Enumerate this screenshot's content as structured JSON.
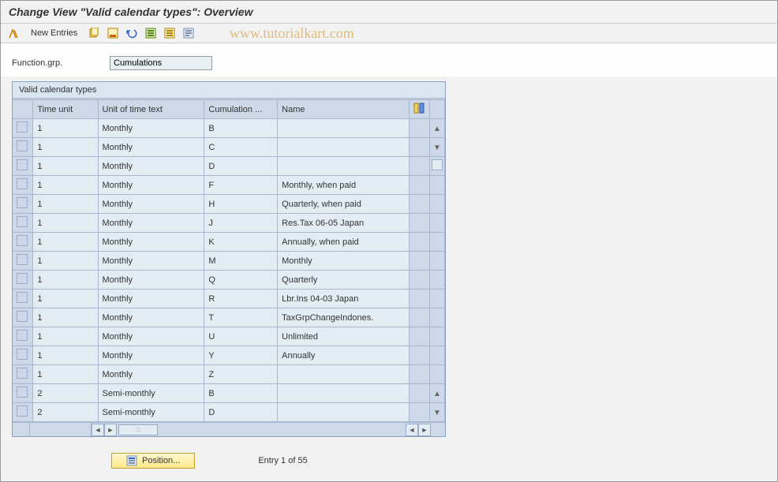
{
  "title": "Change View \"Valid calendar types\": Overview",
  "watermark": "www.tutorialkart.com",
  "toolbar": {
    "new_entries_label": "New Entries"
  },
  "form": {
    "function_grp_label": "Function.grp.",
    "function_grp_value": "Cumulations"
  },
  "panel": {
    "title": "Valid calendar types",
    "columns": {
      "time_unit": "Time unit",
      "unit_of_time_text": "Unit of time text",
      "cumulation": "Cumulation ...",
      "name": "Name"
    },
    "rows": [
      {
        "time_unit": "1",
        "unit_text": "Monthly",
        "cumulation": "B",
        "name": ""
      },
      {
        "time_unit": "1",
        "unit_text": "Monthly",
        "cumulation": "C",
        "name": ""
      },
      {
        "time_unit": "1",
        "unit_text": "Monthly",
        "cumulation": "D",
        "name": ""
      },
      {
        "time_unit": "1",
        "unit_text": "Monthly",
        "cumulation": "F",
        "name": "Monthly, when paid"
      },
      {
        "time_unit": "1",
        "unit_text": "Monthly",
        "cumulation": "H",
        "name": "Quarterly, when paid"
      },
      {
        "time_unit": "1",
        "unit_text": "Monthly",
        "cumulation": "J",
        "name": "Res.Tax 06-05  Japan"
      },
      {
        "time_unit": "1",
        "unit_text": "Monthly",
        "cumulation": "K",
        "name": "Annually, when paid"
      },
      {
        "time_unit": "1",
        "unit_text": "Monthly",
        "cumulation": "M",
        "name": "Monthly"
      },
      {
        "time_unit": "1",
        "unit_text": "Monthly",
        "cumulation": "Q",
        "name": "Quarterly"
      },
      {
        "time_unit": "1",
        "unit_text": "Monthly",
        "cumulation": "R",
        "name": "Lbr.Ins 04-03  Japan"
      },
      {
        "time_unit": "1",
        "unit_text": "Monthly",
        "cumulation": "T",
        "name": "TaxGrpChangeIndones."
      },
      {
        "time_unit": "1",
        "unit_text": "Monthly",
        "cumulation": "U",
        "name": "Unlimited"
      },
      {
        "time_unit": "1",
        "unit_text": "Monthly",
        "cumulation": "Y",
        "name": "Annually"
      },
      {
        "time_unit": "1",
        "unit_text": "Monthly",
        "cumulation": "Z",
        "name": ""
      },
      {
        "time_unit": "2",
        "unit_text": "Semi-monthly",
        "cumulation": "B",
        "name": ""
      },
      {
        "time_unit": "2",
        "unit_text": "Semi-monthly",
        "cumulation": "D",
        "name": ""
      }
    ]
  },
  "footer": {
    "position_label": "Position...",
    "entry_text": "Entry 1 of 55"
  },
  "colors": {
    "panel_bg": "#d9e5ef",
    "cell_bg": "#e4ecf3",
    "header_bg": "#cdd9e8",
    "border": "#a8b8d0"
  }
}
